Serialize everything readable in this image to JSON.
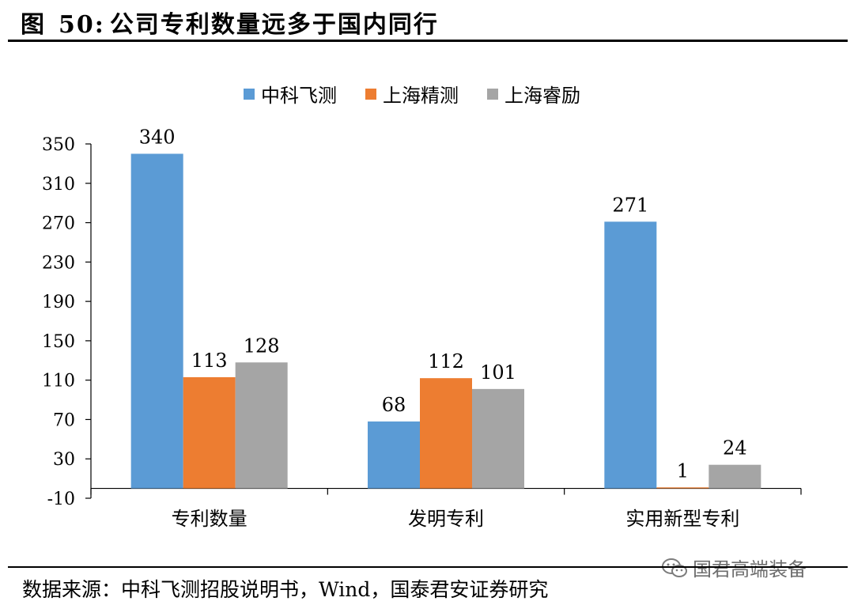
{
  "figure": {
    "label": "图",
    "number": "50:",
    "title": "公司专利数量远多于国内同行"
  },
  "source": {
    "label": "数据来源：",
    "text": "中科飞测招股说明书，",
    "wind": "Wind",
    "text2": "，国泰君安证券研究"
  },
  "watermark": {
    "text": "国君高端装备",
    "icon": "wechat-icon"
  },
  "chart_data": {
    "type": "bar",
    "categories": [
      "专利数量",
      "发明专利",
      "实用新型专利"
    ],
    "series": [
      {
        "name": "中科飞测",
        "color": "#5B9BD5",
        "values": [
          340,
          68,
          271
        ]
      },
      {
        "name": "上海精测",
        "color": "#ED7D31",
        "values": [
          113,
          112,
          1
        ]
      },
      {
        "name": "上海睿励",
        "color": "#A5A5A5",
        "values": [
          128,
          101,
          24
        ]
      }
    ],
    "yticks": [
      350,
      310,
      270,
      230,
      190,
      150,
      110,
      70,
      30,
      -10
    ],
    "ylim": [
      -10,
      350
    ],
    "grid": false,
    "legend_position": "top"
  }
}
